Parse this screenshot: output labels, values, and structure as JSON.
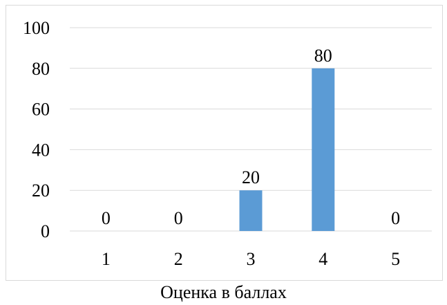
{
  "chart_data": {
    "type": "bar",
    "categories": [
      "1",
      "2",
      "3",
      "4",
      "5"
    ],
    "values": [
      0,
      0,
      20,
      80,
      0
    ],
    "data_labels": [
      "0",
      "0",
      "20",
      "80",
      "0"
    ],
    "xlabel": "Оценка в баллах",
    "ylabel": "",
    "ylim": [
      0,
      100
    ],
    "yticks": [
      "0",
      "20",
      "40",
      "60",
      "80",
      "100"
    ],
    "grid": true,
    "bar_color": "#5b9bd5",
    "gridline_color": "#d9d9d9"
  }
}
